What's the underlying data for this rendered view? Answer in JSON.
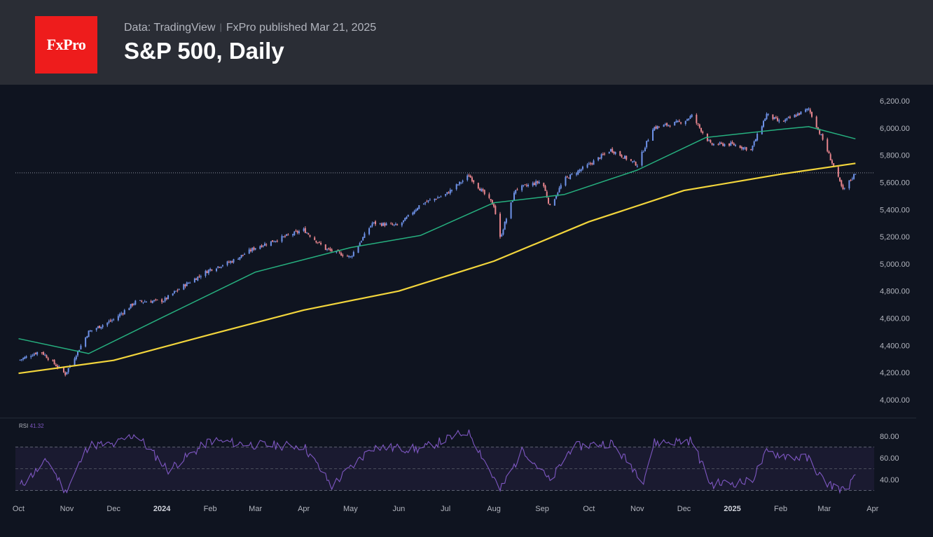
{
  "header": {
    "logo_text": "FxPro",
    "source_prefix": "Data: TradingView",
    "published": "FxPro published Mar 21, 2025",
    "title": "S&P 500, Daily"
  },
  "colors": {
    "background": "#0f1420",
    "header_bg": "#2a2d35",
    "logo_bg": "#ee1c1c",
    "up_candle": "#6f93ea",
    "down_candle": "#e8858d",
    "ma_fast": "#26b07f",
    "ma_slow": "#f2d53c",
    "rsi_line": "#7e57c2"
  },
  "chart_data": [
    {
      "type": "line",
      "title": "S&P 500, Daily",
      "series": [
        {
          "name": "",
          "kind": "close",
          "x": [
            "2023-10-01",
            "2023-10-15",
            "2023-10-31",
            "2023-11-15",
            "2023-12-01",
            "2023-12-15",
            "2024-01-02",
            "2024-01-15",
            "2024-02-01",
            "2024-02-15",
            "2024-03-01",
            "2024-03-15",
            "2024-04-01",
            "2024-04-15",
            "2024-05-01",
            "2024-05-15",
            "2024-06-01",
            "2024-06-15",
            "2024-07-01",
            "2024-07-16",
            "2024-08-01",
            "2024-08-05",
            "2024-08-15",
            "2024-09-01",
            "2024-09-06",
            "2024-09-15",
            "2024-10-01",
            "2024-10-15",
            "2024-11-01",
            "2024-11-11",
            "2024-12-01",
            "2024-12-06",
            "2024-12-18",
            "2025-01-01",
            "2025-01-13",
            "2025-01-23",
            "2025-02-01",
            "2025-02-19",
            "2025-03-01",
            "2025-03-13",
            "2025-03-21"
          ],
          "values": [
            4290,
            4360,
            4190,
            4500,
            4590,
            4720,
            4730,
            4840,
            4960,
            5020,
            5120,
            5180,
            5250,
            5110,
            5050,
            5300,
            5280,
            5440,
            5510,
            5650,
            5430,
            5190,
            5550,
            5610,
            5420,
            5620,
            5730,
            5840,
            5730,
            6000,
            6050,
            6090,
            5880,
            5880,
            5840,
            6100,
            6040,
            6140,
            5890,
            5540,
            5670
          ]
        },
        {
          "name": "",
          "kind": "sma-fast",
          "x": [
            "2023-10-01",
            "2023-11-15",
            "2024-01-02",
            "2024-03-01",
            "2024-05-01",
            "2024-06-15",
            "2024-08-01",
            "2024-09-15",
            "2024-11-01",
            "2024-12-15",
            "2025-02-01",
            "2025-02-19",
            "2025-03-21"
          ],
          "values": [
            4450,
            4340,
            4610,
            4940,
            5120,
            5210,
            5450,
            5510,
            5690,
            5930,
            5990,
            6010,
            5920
          ]
        },
        {
          "name": "",
          "kind": "sma-slow",
          "x": [
            "2023-10-01",
            "2023-12-01",
            "2024-02-01",
            "2024-04-01",
            "2024-06-01",
            "2024-08-01",
            "2024-10-01",
            "2024-12-01",
            "2025-02-01",
            "2025-03-21"
          ],
          "values": [
            4195,
            4290,
            4480,
            4660,
            4800,
            5020,
            5310,
            5540,
            5660,
            5740
          ]
        }
      ],
      "last_price": 5670,
      "ylim": [
        4000,
        6200
      ],
      "yticks": [
        "6,200.00",
        "6,000.00",
        "5,800.00",
        "5,600.00",
        "5,400.00",
        "5,200.00",
        "5,000.00",
        "4,800.00",
        "4,600.00",
        "4,400.00",
        "4,200.00",
        "4,000.00"
      ],
      "xticks": [
        "Oct",
        "Nov",
        "Dec",
        "2024",
        "Feb",
        "Mar",
        "Apr",
        "May",
        "Jun",
        "Jul",
        "Aug",
        "Sep",
        "Oct",
        "Nov",
        "Dec",
        "2025",
        "Feb",
        "Mar",
        "Apr"
      ],
      "grid": false,
      "legend": "none"
    },
    {
      "type": "line",
      "indicator_label": "RSI",
      "indicator_value": "41.32",
      "series": [
        {
          "name": "",
          "x": [
            "2023-10-01",
            "2023-10-20",
            "2023-10-31",
            "2023-11-15",
            "2023-12-01",
            "2023-12-15",
            "2024-01-05",
            "2024-02-01",
            "2024-03-01",
            "2024-04-01",
            "2024-04-19",
            "2024-05-15",
            "2024-06-15",
            "2024-07-16",
            "2024-08-05",
            "2024-08-20",
            "2024-09-06",
            "2024-09-20",
            "2024-10-15",
            "2024-11-05",
            "2024-11-12",
            "2024-12-06",
            "2024-12-18",
            "2025-01-13",
            "2025-01-23",
            "2025-02-19",
            "2025-03-01",
            "2025-03-13",
            "2025-03-21"
          ],
          "values": [
            33,
            58,
            28,
            72,
            72,
            82,
            49,
            76,
            72,
            71,
            34,
            70,
            68,
            85,
            30,
            68,
            38,
            70,
            74,
            40,
            74,
            76,
            36,
            38,
            65,
            59,
            38,
            30,
            41.32
          ]
        }
      ],
      "ylim": [
        25,
        85
      ],
      "yticks": [
        "80.00",
        "60.00",
        "40.00"
      ],
      "band": [
        30,
        70
      ]
    }
  ]
}
